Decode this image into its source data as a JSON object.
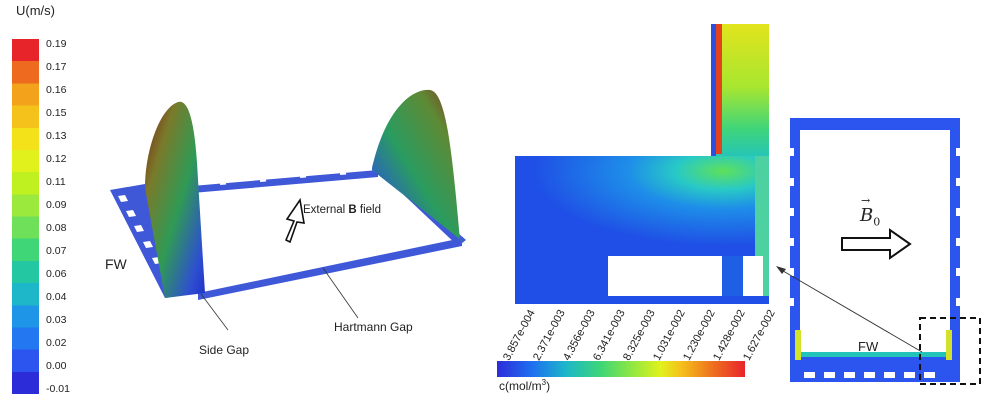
{
  "left_colorbar": {
    "title": "U(m/s)",
    "ticks": [
      "0.19",
      "0.17",
      "0.16",
      "0.15",
      "0.13",
      "0.12",
      "0.11",
      "0.09",
      "0.08",
      "0.07",
      "0.06",
      "0.04",
      "0.03",
      "0.02",
      "0.00",
      "-0.01"
    ],
    "colors": [
      "#e8242b",
      "#ee6a1f",
      "#f3a21c",
      "#f4c21a",
      "#f3e21a",
      "#e1f11c",
      "#bff020",
      "#9be93c",
      "#6fe05a",
      "#3ed676",
      "#23c7a2",
      "#1db7c9",
      "#1e95e6",
      "#2377f0",
      "#2b55ee",
      "#2d2cd9"
    ]
  },
  "left_labels": {
    "fw": "FW",
    "field": "External ",
    "field_bold": "B",
    "field_tail": " field",
    "side_gap": "Side Gap",
    "hartmann_gap": "Hartmann Gap"
  },
  "bottom_colorbar": {
    "title": "c(mol/m",
    "title_sup": "3",
    "title_end": ")",
    "ticks": [
      "3.857e-004",
      "2.371e-003",
      "4.356e-003",
      "6.341e-003",
      "8.325e-003",
      "1.031e-002",
      "1.230e-002",
      "1.428e-002",
      "1.627e-002"
    ]
  },
  "right_labels": {
    "b0": "B",
    "b0_sub": "0",
    "fw": "FW"
  }
}
